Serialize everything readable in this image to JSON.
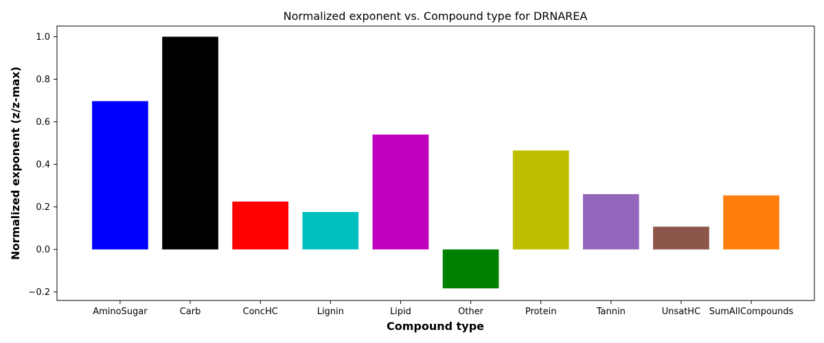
{
  "chart_data": {
    "type": "bar",
    "title": "Normalized exponent vs. Compound type for DRNAREA",
    "xlabel": "Compound type",
    "ylabel": "Normalized exponent (z/z-max)",
    "categories": [
      "AminoSugar",
      "Carb",
      "ConcHC",
      "Lignin",
      "Lipid",
      "Other",
      "Protein",
      "Tannin",
      "UnsatHC",
      "SumAllCompounds"
    ],
    "values": [
      0.697,
      1.0,
      0.225,
      0.176,
      0.54,
      -0.183,
      0.465,
      0.26,
      0.107,
      0.254
    ],
    "colors": [
      "#0000ff",
      "#000000",
      "#ff0000",
      "#00bfbf",
      "#bf00bf",
      "#008000",
      "#bfbf00",
      "#9467bd",
      "#8c564b",
      "#ff7f0e"
    ],
    "ylim": [
      -0.24,
      1.05
    ],
    "yticks": [
      -0.2,
      0.0,
      0.2,
      0.4,
      0.6,
      0.8,
      1.0
    ],
    "ytick_labels": [
      "−0.2",
      "0.0",
      "0.2",
      "0.4",
      "0.6",
      "0.8",
      "1.0"
    ],
    "grid": false,
    "legend": "none"
  }
}
